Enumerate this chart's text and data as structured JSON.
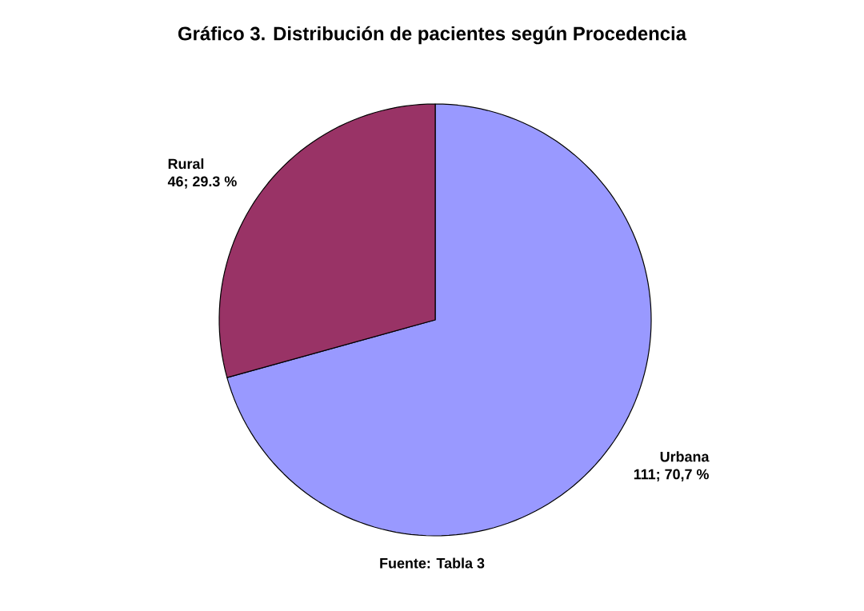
{
  "chart_data": {
    "type": "pie",
    "title": "Gráfico 3. Distribución de pacientes según Procedencia",
    "categories": [
      "Urbana",
      "Rural"
    ],
    "values": [
      111,
      46
    ],
    "colors": [
      "#9999ff",
      "#993366"
    ],
    "value_labels": [
      "111; 70,7 %",
      "46; 29.3 %"
    ],
    "annotations": [
      "Fuente: Tabla 3"
    ]
  }
}
